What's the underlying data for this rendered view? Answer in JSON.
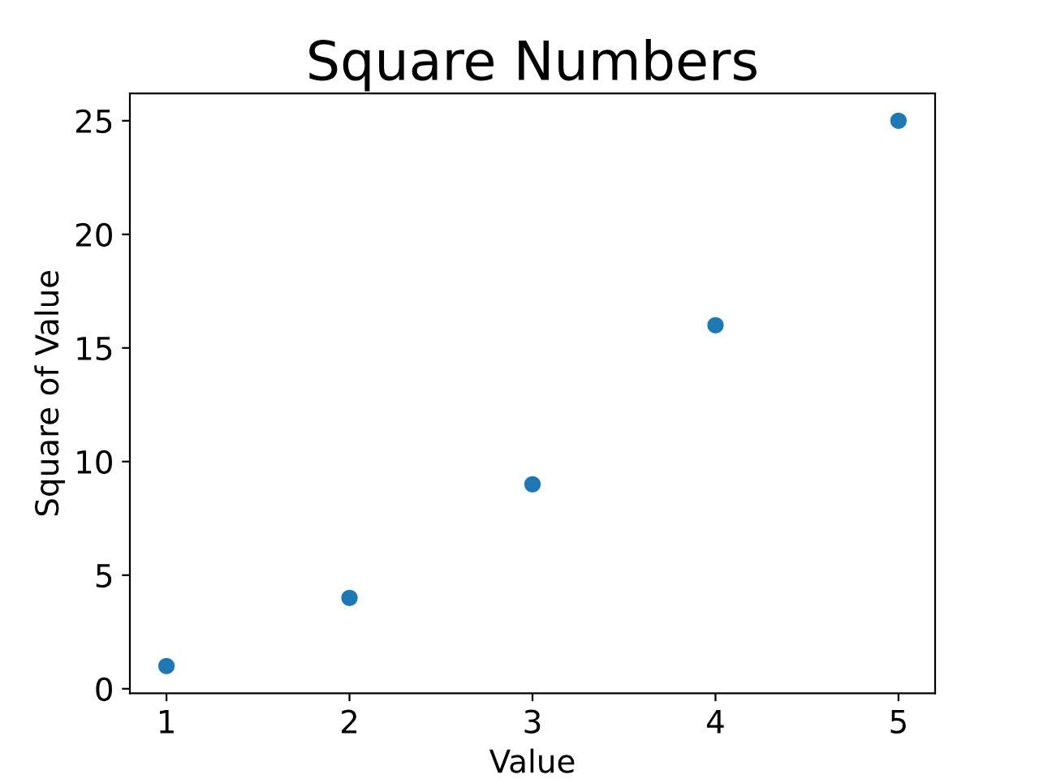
{
  "chart_data": {
    "type": "scatter",
    "title": "Square Numbers",
    "xlabel": "Value",
    "ylabel": "Square of Value",
    "x": [
      1,
      2,
      3,
      4,
      5
    ],
    "series": [
      {
        "color": "#1f77b4",
        "values": [
          1,
          4,
          9,
          16,
          25
        ]
      }
    ],
    "xlim": [
      0.8,
      5.2
    ],
    "ylim": [
      -0.2,
      26.2
    ],
    "xticks": [
      1,
      2,
      3,
      4,
      5
    ],
    "yticks": [
      0,
      5,
      10,
      15,
      20,
      25
    ],
    "marker": "circle",
    "grid": false,
    "legend": false
  }
}
